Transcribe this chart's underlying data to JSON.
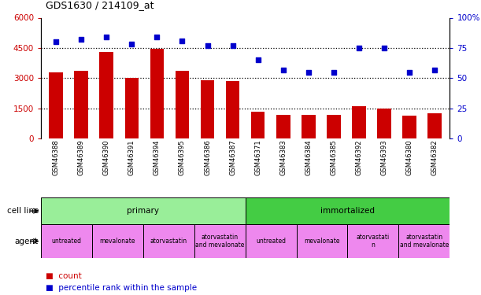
{
  "title": "GDS1630 / 214109_at",
  "samples": [
    "GSM46388",
    "GSM46389",
    "GSM46390",
    "GSM46391",
    "GSM46394",
    "GSM46395",
    "GSM46386",
    "GSM46387",
    "GSM46371",
    "GSM46383",
    "GSM46384",
    "GSM46385",
    "GSM46392",
    "GSM46393",
    "GSM46380",
    "GSM46382"
  ],
  "counts": [
    3300,
    3350,
    4300,
    3000,
    4450,
    3350,
    2900,
    2850,
    1350,
    1200,
    1200,
    1200,
    1600,
    1500,
    1150,
    1250
  ],
  "percentiles": [
    80,
    82,
    84,
    78,
    84,
    81,
    77,
    77,
    65,
    57,
    55,
    55,
    75,
    75,
    55,
    57
  ],
  "bar_color": "#cc0000",
  "dot_color": "#0000cc",
  "ylim_left": [
    0,
    6000
  ],
  "ylim_right": [
    0,
    100
  ],
  "yticks_left": [
    0,
    1500,
    3000,
    4500,
    6000
  ],
  "yticks_right": [
    0,
    25,
    50,
    75,
    100
  ],
  "grid_lines": [
    1500,
    3000,
    4500
  ],
  "cell_line_groups": [
    {
      "label": "primary",
      "start": 0,
      "end": 8,
      "color": "#99ee99"
    },
    {
      "label": "immortalized",
      "start": 8,
      "end": 16,
      "color": "#44cc44"
    }
  ],
  "agent_groups": [
    {
      "label": "untreated",
      "start": 0,
      "end": 2,
      "color": "#ee88ee"
    },
    {
      "label": "mevalonate",
      "start": 2,
      "end": 4,
      "color": "#ee88ee"
    },
    {
      "label": "atorvastatin",
      "start": 4,
      "end": 6,
      "color": "#ee88ee"
    },
    {
      "label": "atorvastatin\nand mevalonate",
      "start": 6,
      "end": 8,
      "color": "#ee88ee"
    },
    {
      "label": "untreated",
      "start": 8,
      "end": 10,
      "color": "#ee88ee"
    },
    {
      "label": "mevalonate",
      "start": 10,
      "end": 12,
      "color": "#ee88ee"
    },
    {
      "label": "atorvastati\nn",
      "start": 12,
      "end": 14,
      "color": "#ee88ee"
    },
    {
      "label": "atorvastatin\nand mevalonate",
      "start": 14,
      "end": 16,
      "color": "#ee88ee"
    }
  ],
  "legend_count_label": "count",
  "legend_pct_label": "percentile rank within the sample",
  "left_label_cell": "cell line",
  "left_label_agent": "agent",
  "bar_width": 0.55,
  "dot_size": 25
}
